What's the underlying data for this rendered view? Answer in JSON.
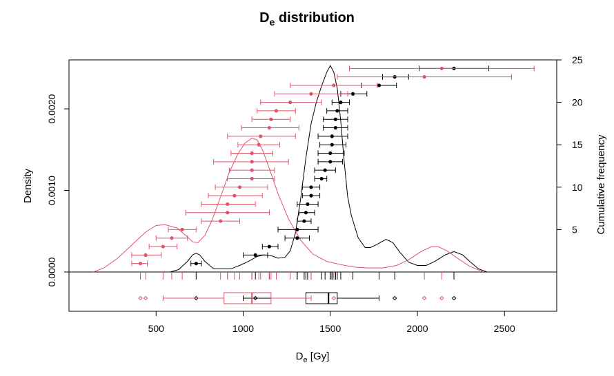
{
  "chart_data": {
    "type": "scatter",
    "title": "De distribution",
    "title_main": "D",
    "title_sub": "e",
    "title_rest": " distribution",
    "xlabel_main": "D",
    "xlabel_sub": "e",
    "xlabel_rest": " [Gy]",
    "ylabel_left": "Density",
    "ylabel_right": "Cumulative frequency",
    "xlim": [
      0,
      2800
    ],
    "ylim_density": [
      0,
      0.0026
    ],
    "ylim_cumulative": [
      0,
      25
    ],
    "x_ticks": [
      "500",
      "1000",
      "1500",
      "2000",
      "2500"
    ],
    "x_tick_values": [
      500,
      1000,
      1500,
      2000,
      2500
    ],
    "y_left_ticks": [
      "0.0000",
      "0.0010",
      "0.0020"
    ],
    "y_left_tick_values": [
      0,
      0.001,
      0.002
    ],
    "y_right_ticks": [
      "5",
      "10",
      "15",
      "20",
      "25"
    ],
    "y_right_tick_values": [
      5,
      10,
      15,
      20,
      25
    ],
    "colors": {
      "series1": "#000000",
      "series2": "#DF536B"
    },
    "series": [
      {
        "color": "#000000",
        "points": [
          {
            "x": 730,
            "lo": 700,
            "hi": 760
          },
          {
            "x": 1070,
            "lo": 1000,
            "hi": 1140
          },
          {
            "x": 1150,
            "lo": 1110,
            "hi": 1200
          },
          {
            "x": 1310,
            "lo": 1240,
            "hi": 1380
          },
          {
            "x": 1310,
            "lo": 1200,
            "hi": 1430
          },
          {
            "x": 1350,
            "lo": 1310,
            "hi": 1390
          },
          {
            "x": 1360,
            "lo": 1320,
            "hi": 1410
          },
          {
            "x": 1370,
            "lo": 1310,
            "hi": 1430
          },
          {
            "x": 1390,
            "lo": 1340,
            "hi": 1440
          },
          {
            "x": 1390,
            "lo": 1340,
            "hi": 1440
          },
          {
            "x": 1450,
            "lo": 1410,
            "hi": 1480
          },
          {
            "x": 1470,
            "lo": 1410,
            "hi": 1530
          },
          {
            "x": 1500,
            "lo": 1430,
            "hi": 1570
          },
          {
            "x": 1500,
            "lo": 1430,
            "hi": 1580
          },
          {
            "x": 1510,
            "lo": 1440,
            "hi": 1590
          },
          {
            "x": 1510,
            "lo": 1430,
            "hi": 1600
          },
          {
            "x": 1530,
            "lo": 1460,
            "hi": 1600
          },
          {
            "x": 1530,
            "lo": 1460,
            "hi": 1600
          },
          {
            "x": 1540,
            "lo": 1480,
            "hi": 1600
          },
          {
            "x": 1560,
            "lo": 1510,
            "hi": 1610
          },
          {
            "x": 1630,
            "lo": 1560,
            "hi": 1710
          },
          {
            "x": 1780,
            "lo": 1680,
            "hi": 1880
          },
          {
            "x": 1870,
            "lo": 1800,
            "hi": 1950
          },
          {
            "x": 2210,
            "lo": 2010,
            "hi": 2410
          }
        ],
        "density": [
          [
            580,
            0
          ],
          [
            630,
            3e-05
          ],
          [
            680,
            0.00013
          ],
          [
            710,
            0.00021
          ],
          [
            730,
            0.00023
          ],
          [
            750,
            0.00021
          ],
          [
            780,
            0.00013
          ],
          [
            830,
            4e-05
          ],
          [
            880,
            4e-05
          ],
          [
            930,
            4e-05
          ],
          [
            980,
            8e-05
          ],
          [
            1030,
            0.00013
          ],
          [
            1080,
            0.00019
          ],
          [
            1120,
            0.00021
          ],
          [
            1160,
            0.0002
          ],
          [
            1200,
            0.00017
          ],
          [
            1240,
            0.00018
          ],
          [
            1270,
            0.00026
          ],
          [
            1300,
            0.00048
          ],
          [
            1330,
            0.0009
          ],
          [
            1360,
            0.0014
          ],
          [
            1390,
            0.00182
          ],
          [
            1420,
            0.00208
          ],
          [
            1450,
            0.00228
          ],
          [
            1480,
            0.00245
          ],
          [
            1500,
            0.00253
          ],
          [
            1520,
            0.00245
          ],
          [
            1540,
            0.00225
          ],
          [
            1560,
            0.00185
          ],
          [
            1580,
            0.00135
          ],
          [
            1600,
            0.00092
          ],
          [
            1620,
            0.0007
          ],
          [
            1660,
            0.00042
          ],
          [
            1700,
            0.0003
          ],
          [
            1730,
            0.0003
          ],
          [
            1770,
            0.00034
          ],
          [
            1820,
            0.0004
          ],
          [
            1860,
            0.00036
          ],
          [
            1900,
            0.00024
          ],
          [
            1950,
            0.00012
          ],
          [
            2000,
            8e-05
          ],
          [
            2050,
            8e-05
          ],
          [
            2100,
            0.00013
          ],
          [
            2160,
            0.00021
          ],
          [
            2210,
            0.00025
          ],
          [
            2260,
            0.00021
          ],
          [
            2300,
            0.00013
          ],
          [
            2350,
            4e-05
          ],
          [
            2400,
            0
          ]
        ],
        "rug": [
          730,
          1070,
          1150,
          1310,
          1310,
          1350,
          1360,
          1370,
          1390,
          1390,
          1450,
          1470,
          1500,
          1500,
          1510,
          1510,
          1530,
          1530,
          1540,
          1560,
          1630,
          1780,
          1870,
          2210
        ],
        "box": {
          "whisker_lo": 1000,
          "q1": 1360,
          "median": 1490,
          "q3": 1540,
          "whisker_hi": 1780,
          "outliers": [
            730,
            1070,
            1870,
            2210
          ]
        }
      },
      {
        "color": "#DF536B",
        "points": [
          {
            "x": 410,
            "lo": 360,
            "hi": 450
          },
          {
            "x": 440,
            "lo": 360,
            "hi": 530
          },
          {
            "x": 540,
            "lo": 460,
            "hi": 620
          },
          {
            "x": 590,
            "lo": 500,
            "hi": 680
          },
          {
            "x": 650,
            "lo": 570,
            "hi": 730
          },
          {
            "x": 870,
            "lo": 760,
            "hi": 980
          },
          {
            "x": 910,
            "lo": 670,
            "hi": 1150
          },
          {
            "x": 910,
            "lo": 760,
            "hi": 1070
          },
          {
            "x": 950,
            "lo": 800,
            "hi": 1110
          },
          {
            "x": 980,
            "lo": 840,
            "hi": 1140
          },
          {
            "x": 1050,
            "lo": 910,
            "hi": 1180
          },
          {
            "x": 1050,
            "lo": 920,
            "hi": 1180
          },
          {
            "x": 1050,
            "lo": 830,
            "hi": 1260
          },
          {
            "x": 1050,
            "lo": 930,
            "hi": 1170
          },
          {
            "x": 1090,
            "lo": 970,
            "hi": 1210
          },
          {
            "x": 1100,
            "lo": 910,
            "hi": 1300
          },
          {
            "x": 1150,
            "lo": 990,
            "hi": 1320
          },
          {
            "x": 1160,
            "lo": 1050,
            "hi": 1270
          },
          {
            "x": 1190,
            "lo": 1080,
            "hi": 1300
          },
          {
            "x": 1270,
            "lo": 1100,
            "hi": 1450
          },
          {
            "x": 1390,
            "lo": 1180,
            "hi": 1600
          },
          {
            "x": 1520,
            "lo": 1270,
            "hi": 1770
          },
          {
            "x": 2040,
            "lo": 1540,
            "hi": 2540
          },
          {
            "x": 2140,
            "lo": 1610,
            "hi": 2670
          }
        ],
        "density": [
          [
            140,
            0
          ],
          [
            200,
            5e-05
          ],
          [
            280,
            0.00017
          ],
          [
            360,
            0.00033
          ],
          [
            440,
            0.00049
          ],
          [
            500,
            0.00057
          ],
          [
            550,
            0.00058
          ],
          [
            620,
            0.00054
          ],
          [
            680,
            0.00043
          ],
          [
            710,
            0.00037
          ],
          [
            740,
            0.00036
          ],
          [
            780,
            0.00045
          ],
          [
            820,
            0.00063
          ],
          [
            870,
            0.00092
          ],
          [
            920,
            0.00122
          ],
          [
            970,
            0.00145
          ],
          [
            1010,
            0.00158
          ],
          [
            1050,
            0.00164
          ],
          [
            1080,
            0.00162
          ],
          [
            1110,
            0.0015
          ],
          [
            1150,
            0.00127
          ],
          [
            1200,
            0.00096
          ],
          [
            1260,
            0.00065
          ],
          [
            1330,
            0.00039
          ],
          [
            1400,
            0.00022
          ],
          [
            1480,
            0.00013
          ],
          [
            1560,
            9e-05
          ],
          [
            1640,
            6e-05
          ],
          [
            1720,
            5e-05
          ],
          [
            1800,
            5e-05
          ],
          [
            1880,
            8e-05
          ],
          [
            1950,
            0.00015
          ],
          [
            2020,
            0.00025
          ],
          [
            2080,
            0.00031
          ],
          [
            2120,
            0.00031
          ],
          [
            2170,
            0.00026
          ],
          [
            2230,
            0.00017
          ],
          [
            2300,
            7e-05
          ],
          [
            2380,
            0
          ]
        ],
        "rug": [
          410,
          440,
          540,
          590,
          650,
          870,
          910,
          910,
          950,
          980,
          1050,
          1050,
          1050,
          1050,
          1090,
          1100,
          1150,
          1160,
          1190,
          1270,
          1390,
          1520,
          2040,
          2140
        ],
        "box": {
          "whisker_lo": 540,
          "q1": 890,
          "median": 1050,
          "q3": 1160,
          "whisker_hi": 1390,
          "outliers": [
            410,
            440,
            1520,
            2040,
            2140
          ]
        }
      }
    ]
  }
}
